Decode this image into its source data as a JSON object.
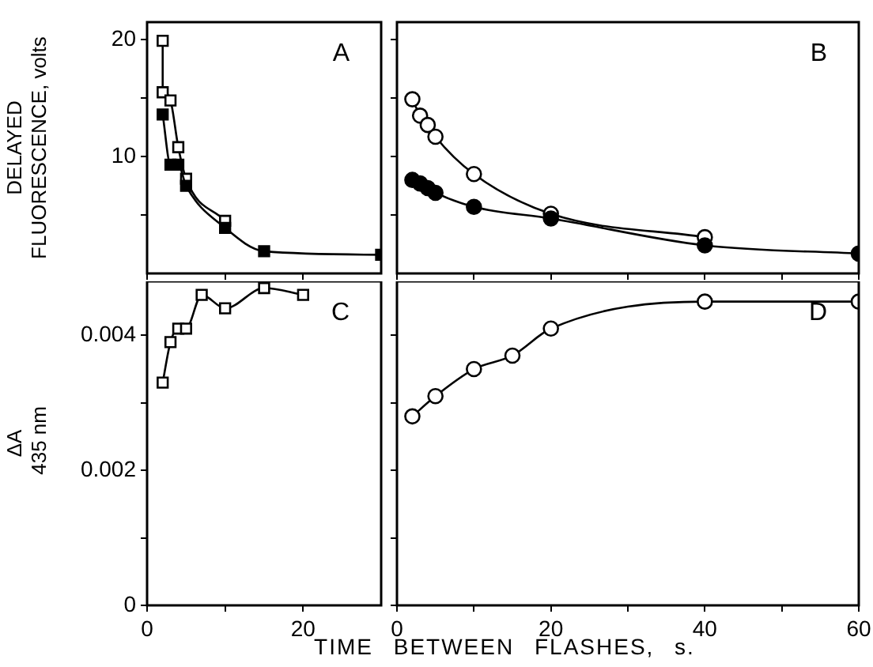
{
  "chart_data": [
    {
      "type": "line",
      "annotations": [
        "A"
      ],
      "ylabel": "DELAYED FLUORESCENCE, volts",
      "xlim": [
        0,
        30
      ],
      "xticks": [
        {
          "value": 0,
          "label": null
        },
        {
          "value": 10,
          "label": null
        },
        {
          "value": 20,
          "label": null
        }
      ],
      "ylim": [
        0,
        21.5
      ],
      "yticks": [
        {
          "value": 5,
          "label": null
        },
        10,
        {
          "value": 15,
          "label": null
        },
        20
      ],
      "tick_labels": "y",
      "marker": "square",
      "line_style": "solid",
      "grid": false,
      "legend": false,
      "series": [
        {
          "color": "#ffffff",
          "x": [
            2,
            2,
            3,
            4,
            5,
            10
          ],
          "values": [
            19.9,
            15.5,
            14.8,
            10.8,
            8.1,
            4.5
          ]
        },
        {
          "color": "#000000",
          "x": [
            2,
            3,
            4,
            5,
            10,
            15,
            30
          ],
          "values": [
            13.6,
            9.3,
            9.3,
            7.5,
            3.9,
            1.9,
            1.6
          ]
        }
      ]
    },
    {
      "type": "line",
      "annotations": [
        "B"
      ],
      "xlim": [
        0,
        60
      ],
      "xticks": [
        {
          "value": 0,
          "label": null
        },
        {
          "value": 10,
          "label": null
        },
        {
          "value": 20,
          "label": null
        },
        {
          "value": 30,
          "label": null
        },
        {
          "value": 40,
          "label": null
        },
        {
          "value": 50,
          "label": null
        },
        {
          "value": 60,
          "label": null
        }
      ],
      "ylim": [
        0,
        21.5
      ],
      "yticks": [
        {
          "value": 5,
          "label": null
        },
        {
          "value": 10,
          "label": null
        },
        {
          "value": 15,
          "label": null
        },
        {
          "value": 20,
          "label": null
        }
      ],
      "tick_labels": false,
      "marker": "circle",
      "line_style": "solid",
      "grid": false,
      "legend": false,
      "series": [
        {
          "color": "#ffffff",
          "x": [
            2,
            3,
            4,
            5,
            10,
            20,
            40
          ],
          "values": [
            14.9,
            13.5,
            12.7,
            11.7,
            8.5,
            5.1,
            3.1
          ]
        },
        {
          "color": "#000000",
          "x": [
            2,
            3,
            4,
            5,
            10,
            20,
            40,
            60
          ],
          "values": [
            8.0,
            7.7,
            7.3,
            6.9,
            5.7,
            4.7,
            2.4,
            1.7
          ]
        }
      ]
    },
    {
      "type": "line",
      "annotations": [
        "C"
      ],
      "xlabel": "TIME BETWEEN FLASHES, s.",
      "ylabel": "ΔA  435 nm",
      "xlim": [
        0,
        30
      ],
      "xticks": [
        0,
        {
          "value": 10,
          "label": null
        },
        20
      ],
      "ylim": [
        0,
        0.0048
      ],
      "yticks": [
        0,
        {
          "value": 0.001,
          "label": null
        },
        0.002,
        {
          "value": 0.003,
          "label": null
        },
        0.004
      ],
      "marker": "square",
      "line_style": "solid",
      "grid": false,
      "legend": false,
      "series": [
        {
          "color": "#ffffff",
          "x": [
            2,
            3,
            4,
            5,
            7,
            10,
            15,
            20
          ],
          "values": [
            0.0033,
            0.0039,
            0.0041,
            0.0041,
            0.0046,
            0.0044,
            0.0047,
            0.0046
          ]
        }
      ]
    },
    {
      "type": "line",
      "annotations": [
        "D"
      ],
      "xlim": [
        0,
        60
      ],
      "xticks": [
        0,
        {
          "value": 10,
          "label": null
        },
        20,
        {
          "value": 30,
          "label": null
        },
        40,
        {
          "value": 50,
          "label": null
        },
        60
      ],
      "ylim": [
        0,
        0.0048
      ],
      "yticks": [
        {
          "value": 0,
          "label": null
        },
        {
          "value": 0.001,
          "label": null
        },
        {
          "value": 0.002,
          "label": null
        },
        {
          "value": 0.003,
          "label": null
        },
        {
          "value": 0.004,
          "label": null
        }
      ],
      "tick_labels": "x",
      "marker": "circle",
      "line_style": "solid",
      "grid": false,
      "legend": false,
      "series": [
        {
          "color": "#ffffff",
          "x": [
            2,
            5,
            10,
            15,
            20,
            40,
            60
          ],
          "values": [
            0.0028,
            0.0031,
            0.0035,
            0.0037,
            0.0041,
            0.0045,
            0.0045
          ]
        }
      ]
    }
  ]
}
